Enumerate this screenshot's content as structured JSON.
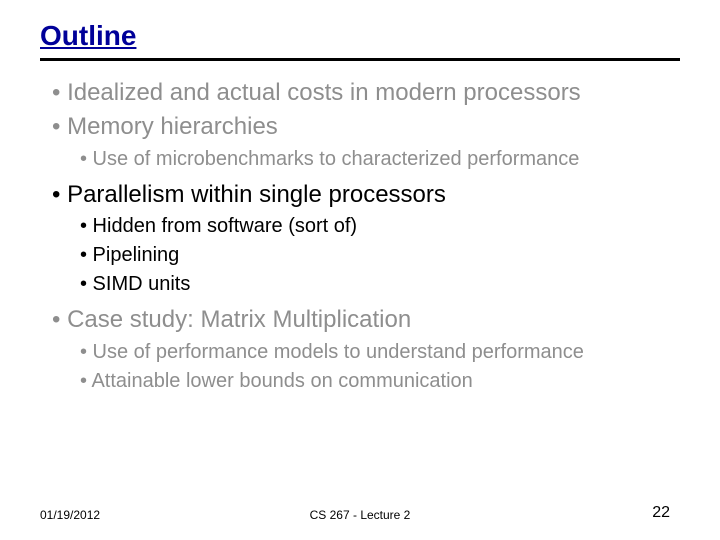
{
  "title": "Outline",
  "title_color": "#000099",
  "hr_color": "#000000",
  "muted_color": "#8e8e8e",
  "normal_color": "#000000",
  "bullets": [
    {
      "level": 1,
      "text": "Idealized and actual costs in modern processors",
      "muted": true
    },
    {
      "level": 1,
      "text": "Memory hierarchies",
      "muted": true
    },
    {
      "level": 2,
      "text": "Use of microbenchmarks to characterized performance",
      "muted": true
    },
    {
      "level": 1,
      "text": "Parallelism within single processors",
      "muted": false,
      "gap": true
    },
    {
      "level": 2,
      "text": "Hidden from software (sort of)",
      "muted": false
    },
    {
      "level": 2,
      "text": "Pipelining",
      "muted": false
    },
    {
      "level": 2,
      "text": "SIMD units",
      "muted": false
    },
    {
      "level": 1,
      "text": "Case study: Matrix Multiplication",
      "muted": true,
      "gap": true
    },
    {
      "level": 2,
      "text": "Use of performance models to understand performance",
      "muted": true
    },
    {
      "level": 2,
      "text": "Attainable lower bounds on communication",
      "muted": true
    }
  ],
  "footer": {
    "date": "01/19/2012",
    "center": "CS 267 - Lecture 2",
    "page": "22"
  }
}
